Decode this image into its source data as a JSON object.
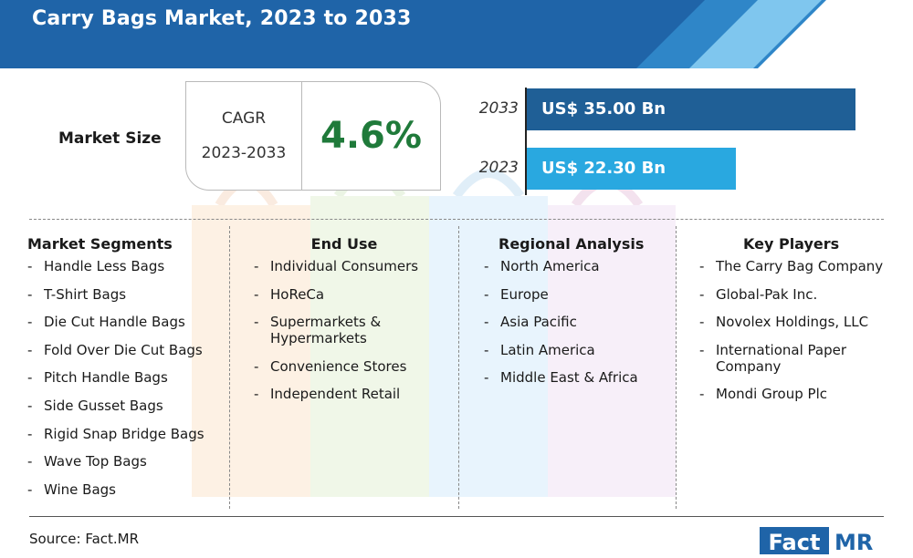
{
  "header": {
    "title": "Carry Bags Market, 2023 to 2033"
  },
  "market_size": {
    "label": "Market Size"
  },
  "cagr": {
    "label": "CAGR",
    "period": "2023-2033",
    "value": "4.6%"
  },
  "bars": [
    {
      "year": "2033",
      "label": "US$ 35.00 Bn",
      "value": 35.0,
      "color": "#1f5f96"
    },
    {
      "year": "2023",
      "label": "US$ 22.30 Bn",
      "value": 22.3,
      "color": "#29a8e0"
    }
  ],
  "columns": [
    {
      "title": "Market Segments",
      "items": [
        "Handle Less Bags",
        "T-Shirt Bags",
        "Die Cut Handle Bags",
        "Fold Over Die Cut Bags",
        "Pitch Handle Bags",
        "Side Gusset Bags",
        "Rigid Snap Bridge Bags",
        "Wave Top Bags",
        "Wine Bags"
      ]
    },
    {
      "title": "End Use",
      "items": [
        "Individual Consumers",
        "HoReCa",
        "Supermarkets &\nHypermarkets",
        "Convenience Stores",
        "Independent Retail"
      ]
    },
    {
      "title": "Regional Analysis",
      "items": [
        "North America",
        "Europe",
        "Asia Pacific",
        "Latin America",
        "Middle East & Africa"
      ]
    },
    {
      "title": "Key Players",
      "items": [
        "The Carry Bag Company",
        "Global-Pak Inc.",
        "Novolex Holdings, LLC",
        "International Paper\nCompany",
        "Mondi Group Plc"
      ]
    }
  ],
  "footer": {
    "source": "Source: Fact.MR",
    "logo_left": "Fact",
    "logo_right": "MR"
  },
  "colors": {
    "header": "#1f64a8",
    "cagr_value": "#1f7a3a"
  }
}
